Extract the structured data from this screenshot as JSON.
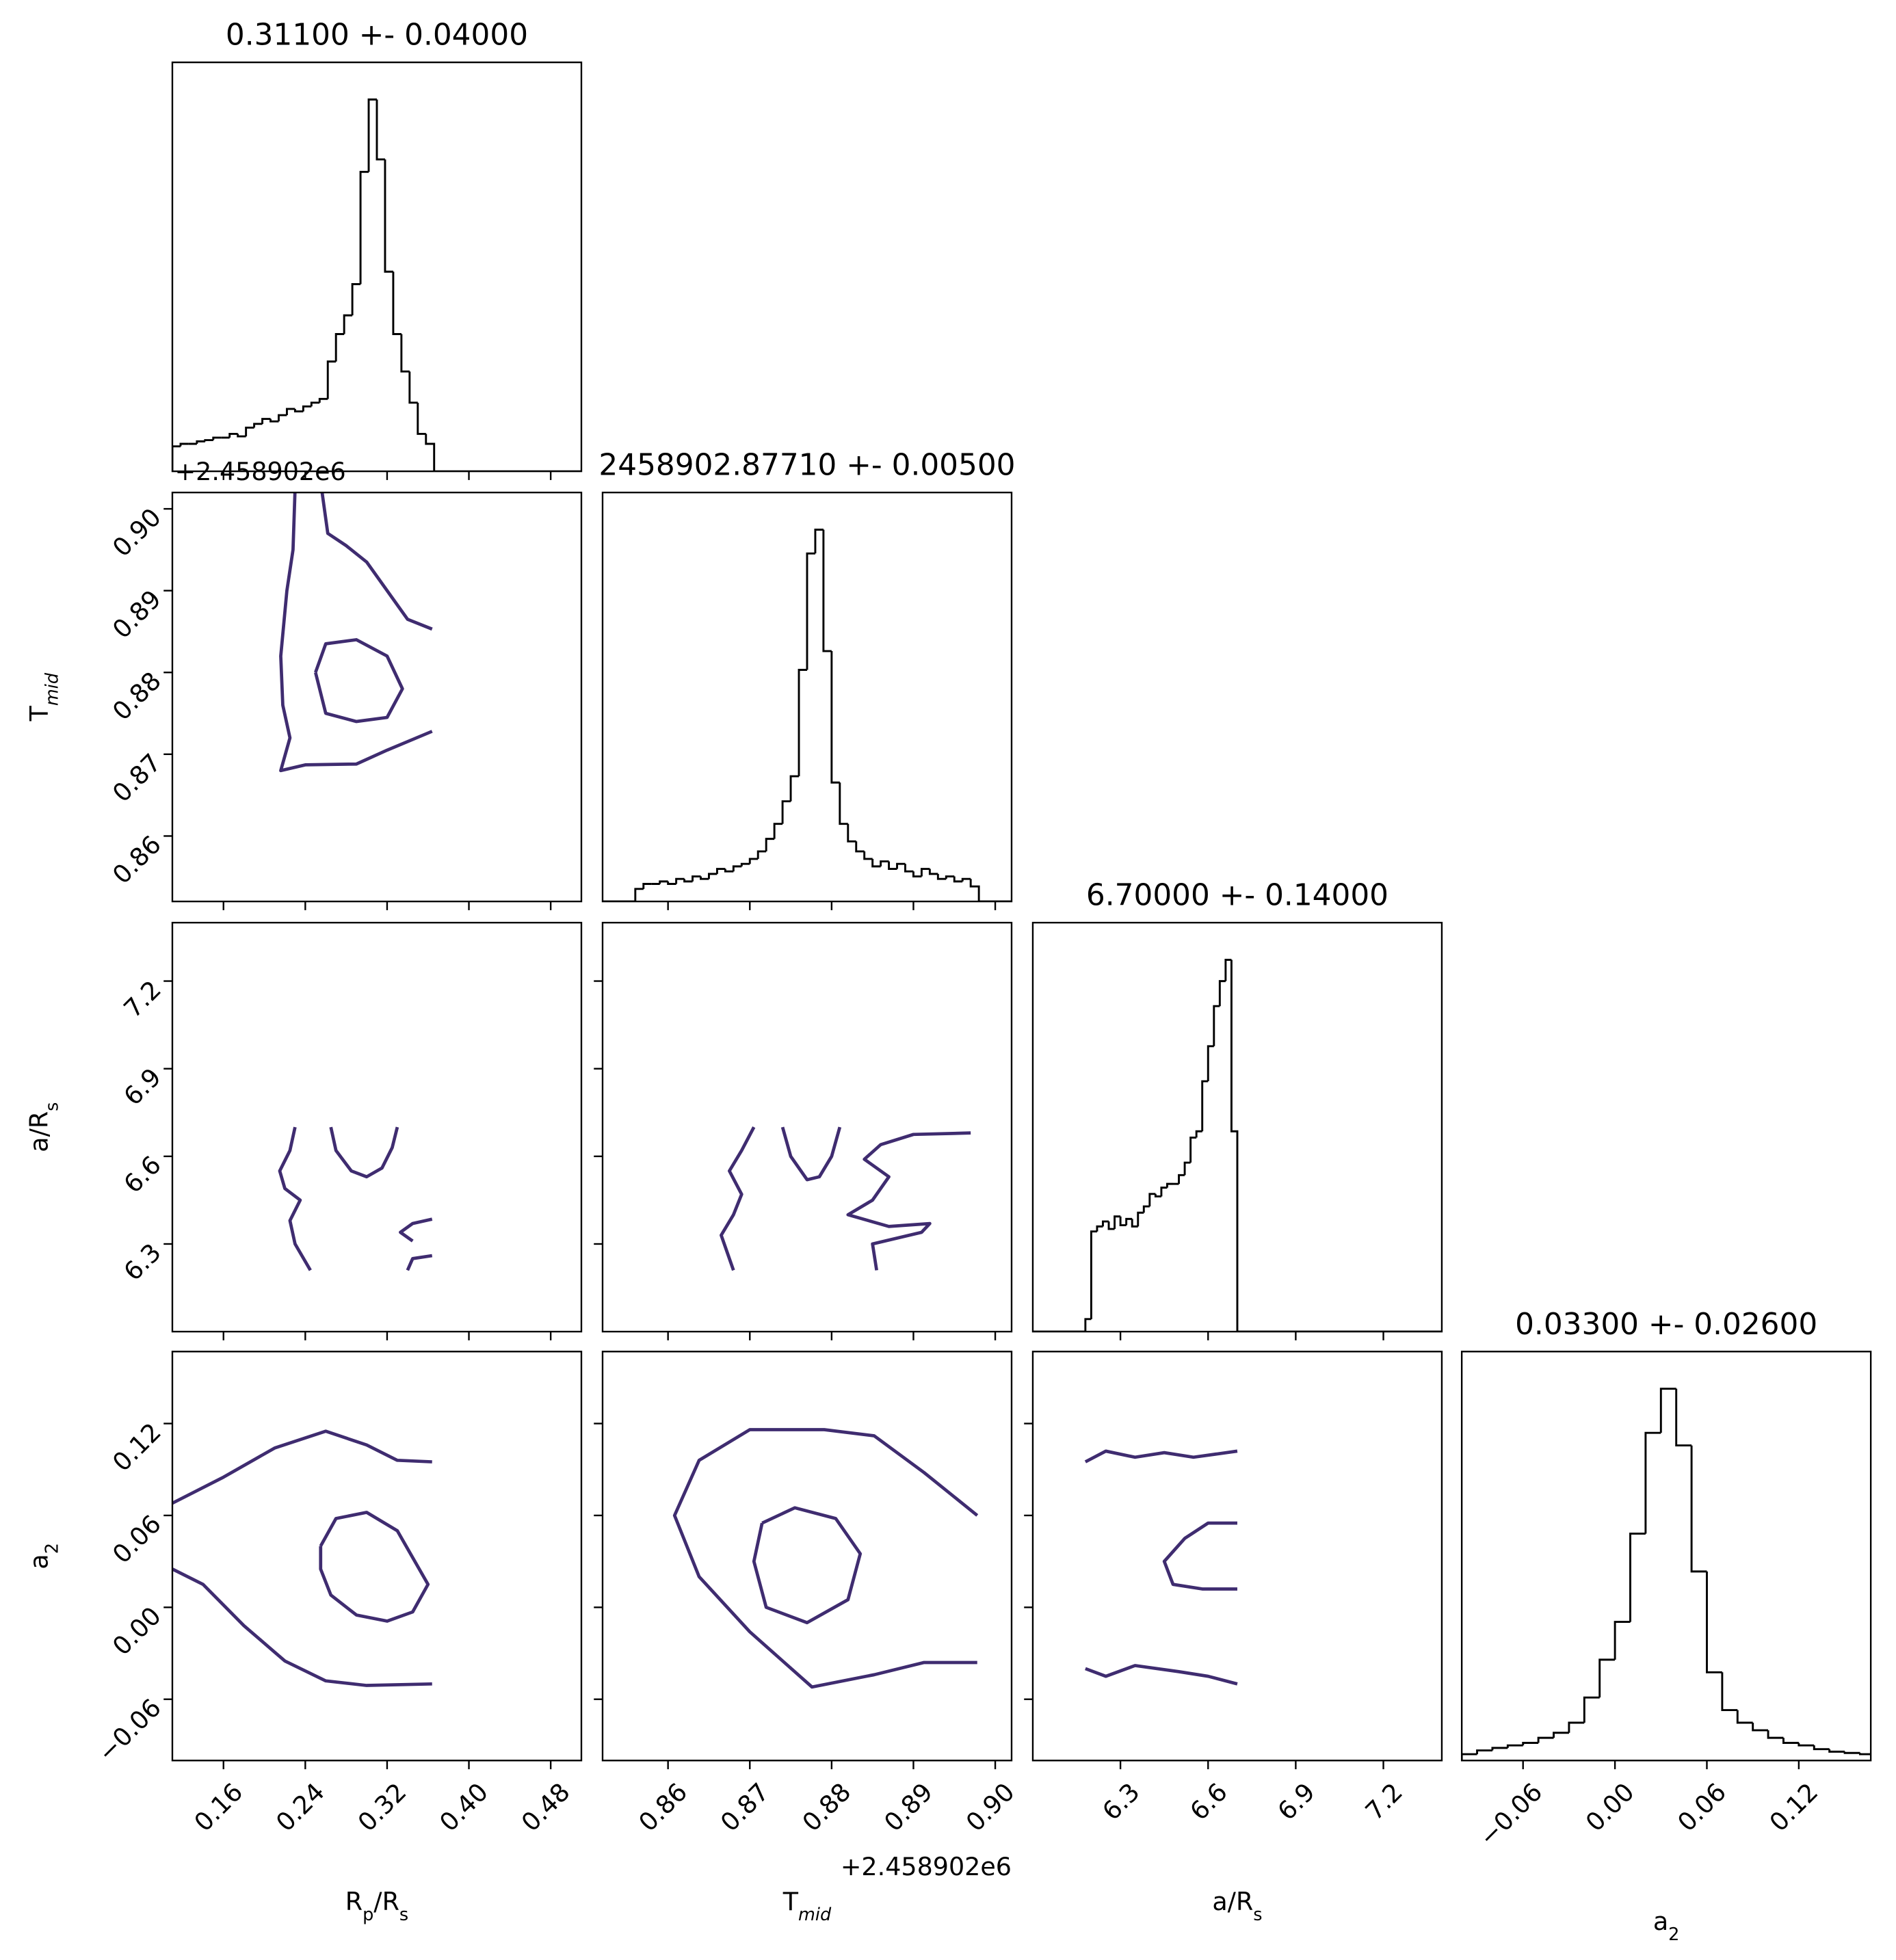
{
  "chart_data": {
    "type": "corner",
    "offset_label": "+2.458902e6",
    "line_color": "#000000",
    "contour_color": "#3f2c70",
    "parameters": [
      {
        "label": [
          "R",
          "p",
          "/R",
          "s"
        ],
        "title": "0.31100 +- 0.04000",
        "xlim": [
          0.11,
          0.51
        ],
        "xticks": [
          0.16,
          0.24,
          0.32,
          {
            "value": 0.4,
            "label": "0.40"
          },
          0.48
        ]
      },
      {
        "label": [
          "T",
          "mid"
        ],
        "title": "2458902.87710 +- 0.00500",
        "xlim": [
          0.852,
          0.902
        ],
        "xticks": [
          0.86,
          0.87,
          0.88,
          0.89,
          {
            "value": 0.9,
            "label": "0.90"
          }
        ]
      },
      {
        "label": [
          "a/R",
          "s"
        ],
        "title": "6.70000 +- 0.14000",
        "xlim": [
          6.0,
          7.4
        ],
        "xticks": [
          6.3,
          6.6,
          6.9,
          7.2
        ]
      },
      {
        "label": [
          "a",
          "2"
        ],
        "title": "0.03300 +- 0.02600",
        "xlim": [
          -0.1,
          0.167
        ],
        "xticks": [
          {
            "value": -0.06,
            "label": "−0.06"
          },
          {
            "value": 0,
            "label": "0.00"
          },
          0.06,
          0.12
        ]
      }
    ],
    "histograms": [
      {
        "bins": [
          0.11,
          0.118,
          0.126,
          0.134,
          0.142,
          0.15,
          0.158,
          0.166,
          0.174,
          0.182,
          0.19,
          0.198,
          0.206,
          0.214,
          0.222,
          0.23,
          0.238,
          0.246,
          0.254,
          0.262,
          0.27,
          0.278,
          0.286,
          0.294,
          0.302,
          0.31,
          0.318,
          0.326,
          0.334,
          0.342,
          0.35,
          0.358,
          0.366
        ],
        "counts": [
          20,
          22,
          22,
          24,
          25,
          27,
          27,
          30,
          28,
          35,
          38,
          42,
          40,
          45,
          50,
          48,
          52,
          55,
          58,
          88,
          110,
          125,
          150,
          240,
          298,
          250,
          160,
          110,
          80,
          55,
          30,
          22
        ]
      },
      {
        "bins": [
          0.856,
          0.857,
          0.858,
          0.859,
          0.86,
          0.861,
          0.862,
          0.863,
          0.864,
          0.865,
          0.866,
          0.867,
          0.868,
          0.869,
          0.87,
          0.871,
          0.872,
          0.873,
          0.874,
          0.875,
          0.876,
          0.877,
          0.878,
          0.879,
          0.88,
          0.881,
          0.882,
          0.883,
          0.884,
          0.885,
          0.886,
          0.887,
          0.888,
          0.889,
          0.89,
          0.891,
          0.892,
          0.893,
          0.894,
          0.895,
          0.896,
          0.897,
          0.898
        ],
        "counts": [
          10,
          14,
          14,
          16,
          14,
          18,
          16,
          20,
          18,
          22,
          26,
          24,
          28,
          30,
          34,
          40,
          50,
          62,
          80,
          100,
          185,
          278,
          297,
          200,
          95,
          62,
          48,
          40,
          34,
          28,
          32,
          26,
          30,
          24,
          20,
          26,
          22,
          18,
          20,
          16,
          18,
          12
        ]
      },
      {
        "bins": [
          6.18,
          6.2,
          6.22,
          6.24,
          6.26,
          6.28,
          6.3,
          6.32,
          6.34,
          6.36,
          6.38,
          6.4,
          6.42,
          6.44,
          6.46,
          6.48,
          6.5,
          6.52,
          6.54,
          6.56,
          6.58,
          6.6,
          6.62,
          6.64,
          6.66,
          6.68,
          6.7
        ],
        "counts": [
          10,
          80,
          84,
          88,
          82,
          92,
          85,
          90,
          84,
          95,
          100,
          110,
          108,
          115,
          118,
          118,
          125,
          135,
          155,
          160,
          200,
          228,
          260,
          280,
          297,
          160
        ]
      },
      {
        "bins": [
          -0.1,
          -0.09,
          -0.08,
          -0.07,
          -0.06,
          -0.05,
          -0.04,
          -0.03,
          -0.02,
          -0.01,
          0,
          0.01,
          0.02,
          0.03,
          0.04,
          0.05,
          0.06,
          0.07,
          0.08,
          0.09,
          0.1,
          0.11,
          0.12,
          0.13,
          0.14,
          0.15,
          0.16,
          0.17
        ],
        "counts": [
          5,
          8,
          10,
          12,
          14,
          18,
          22,
          30,
          50,
          80,
          110,
          180,
          260,
          295,
          250,
          150,
          70,
          40,
          30,
          24,
          18,
          14,
          12,
          9,
          7,
          6,
          5
        ]
      }
    ],
    "pairs": [
      {
        "contours": [
          {
            "x": [
              0.25,
              0.26,
              0.29,
              0.32,
              0.335,
              0.32,
              0.29,
              0.26,
              0.25
            ],
            "y": [
              0.88,
              0.8835,
              0.884,
              0.882,
              0.878,
              0.8745,
              0.874,
              0.875,
              0.88
            ]
          },
          {
            "x": [
              0.23,
              0.228,
              0.222,
              0.216,
              0.218,
              0.225,
              0.216,
              0.24,
              0.29,
              0.32,
              0.364
            ],
            "y": [
              0.9024,
              0.895,
              0.89,
              0.882,
              0.876,
              0.872,
              0.868,
              0.8687,
              0.8688,
              0.8705,
              0.8728
            ]
          },
          {
            "x": [
              0.256,
              0.262,
              0.28,
              0.3,
              0.32,
              0.34,
              0.364
            ],
            "y": [
              0.9024,
              0.897,
              0.8955,
              0.8935,
              0.89,
              0.8865,
              0.8853
            ]
          }
        ]
      },
      {
        "contours": [
          {
            "x": [
              0.265,
              0.27,
              0.285,
              0.3,
              0.315,
              0.325,
              0.33
            ],
            "y": [
              6.7,
              6.62,
              6.55,
              6.53,
              6.56,
              6.63,
              6.7
            ]
          },
          {
            "x": [
              0.23,
              0.225,
              0.215,
              0.22,
              0.235,
              0.225,
              0.23,
              0.245
            ],
            "y": [
              6.7,
              6.62,
              6.55,
              6.49,
              6.45,
              6.38,
              6.3,
              6.21
            ]
          },
          {
            "x": [
              0.364,
              0.345,
              0.333,
              0.345
            ],
            "y": [
              6.385,
              6.37,
              6.34,
              6.31
            ]
          },
          {
            "x": [
              0.364,
              0.345,
              0.34
            ],
            "y": [
              6.26,
              6.25,
              6.21
            ]
          }
        ]
      },
      {
        "contours": [
          {
            "x": [
              0.874,
              0.875,
              0.877,
              0.8785,
              0.88,
              0.881
            ],
            "y": [
              6.7,
              6.6,
              6.52,
              6.53,
              6.6,
              6.7
            ]
          },
          {
            "x": [
              0.8705,
              0.869,
              0.8675,
              0.869,
              0.868,
              0.8665,
              0.868
            ],
            "y": [
              6.7,
              6.62,
              6.55,
              6.47,
              6.4,
              6.33,
              6.21
            ]
          },
          {
            "x": [
              0.897,
              0.89,
              0.886,
              0.884,
              0.887,
              0.885,
              0.882,
              0.887,
              0.892,
              0.891,
              0.885,
              0.8855
            ],
            "y": [
              6.68,
              6.675,
              6.64,
              6.59,
              6.53,
              6.45,
              6.4,
              6.36,
              6.37,
              6.34,
              6.3,
              6.21
            ]
          }
        ]
      },
      {
        "contours": [
          {
            "x": [
              0.255,
              0.27,
              0.3,
              0.33,
              0.36,
              0.345,
              0.32,
              0.29,
              0.265,
              0.255,
              0.255
            ],
            "y": [
              0.04,
              0.058,
              0.062,
              0.05,
              0.015,
              -0.003,
              -0.009,
              -0.005,
              0.008,
              0.025,
              0.04
            ]
          },
          {
            "x": [
              0.11,
              0.16,
              0.21,
              0.26,
              0.3,
              0.33,
              0.364
            ],
            "y": [
              0.068,
              0.085,
              0.104,
              0.115,
              0.106,
              0.096,
              0.095
            ]
          },
          {
            "x": [
              0.11,
              0.14,
              0.18,
              0.22,
              0.26,
              0.3,
              0.364
            ],
            "y": [
              0.025,
              0.015,
              -0.012,
              -0.035,
              -0.048,
              -0.051,
              -0.05
            ]
          }
        ]
      },
      {
        "contours": [
          {
            "x": [
              0.8715,
              0.8755,
              0.8805,
              0.8835,
              0.882,
              0.877,
              0.872,
              0.8705,
              0.8715
            ],
            "y": [
              0.055,
              0.065,
              0.058,
              0.035,
              0.005,
              -0.01,
              0,
              0.03,
              0.055
            ]
          },
          {
            "x": [
              0.8978,
              0.8913,
              0.8852,
              0.8791,
              0.87,
              0.8638,
              0.8608,
              0.8638,
              0.87,
              0.8776,
              0.8852,
              0.8913,
              0.8978
            ],
            "y": [
              0.06,
              0.088,
              0.112,
              0.116,
              0.116,
              0.096,
              0.06,
              0.02,
              -0.016,
              -0.052,
              -0.044,
              -0.036,
              -0.036
            ]
          }
        ]
      },
      {
        "contours": [
          {
            "x": [
              6.7,
              6.6,
              6.52,
              6.45,
              6.48,
              6.58,
              6.7
            ],
            "y": [
              0.055,
              0.055,
              0.045,
              0.03,
              0.015,
              0.012,
              0.012
            ]
          },
          {
            "x": [
              6.18,
              6.25,
              6.35,
              6.45,
              6.55,
              6.7
            ],
            "y": [
              0.095,
              0.102,
              0.098,
              0.101,
              0.098,
              0.102
            ]
          },
          {
            "x": [
              6.18,
              6.25,
              6.35,
              6.5,
              6.6,
              6.7
            ],
            "y": [
              -0.04,
              -0.045,
              -0.038,
              -0.042,
              -0.045,
              -0.05
            ]
          }
        ]
      }
    ]
  }
}
